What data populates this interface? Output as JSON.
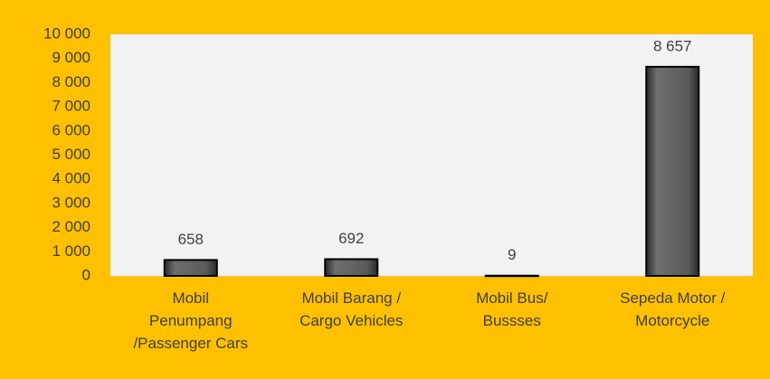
{
  "chart_data": {
    "type": "bar",
    "categories": [
      "Mobil\nPenumpang\n/Passenger Cars",
      "Mobil Barang /\nCargo Vehicles",
      "Mobil Bus/\nBussses",
      "Sepeda Motor /\nMotorcycle"
    ],
    "values": [
      658,
      692,
      9,
      8657
    ],
    "value_labels": [
      "658",
      "692",
      "9",
      "8 657"
    ],
    "color": "#5a5a5a",
    "ylim": [
      0,
      10000
    ],
    "yticks": [
      {
        "value": 0,
        "label": "0"
      },
      {
        "value": 1000,
        "label": "1 000"
      },
      {
        "value": 2000,
        "label": "2 000"
      },
      {
        "value": 3000,
        "label": "3 000"
      },
      {
        "value": 4000,
        "label": "4 000"
      },
      {
        "value": 5000,
        "label": "5 000"
      },
      {
        "value": 6000,
        "label": "6 000"
      },
      {
        "value": 7000,
        "label": "7 000"
      },
      {
        "value": 8000,
        "label": "8 000"
      },
      {
        "value": 9000,
        "label": "9 000"
      },
      {
        "value": 10000,
        "label": "10 000"
      }
    ],
    "grid": false
  }
}
